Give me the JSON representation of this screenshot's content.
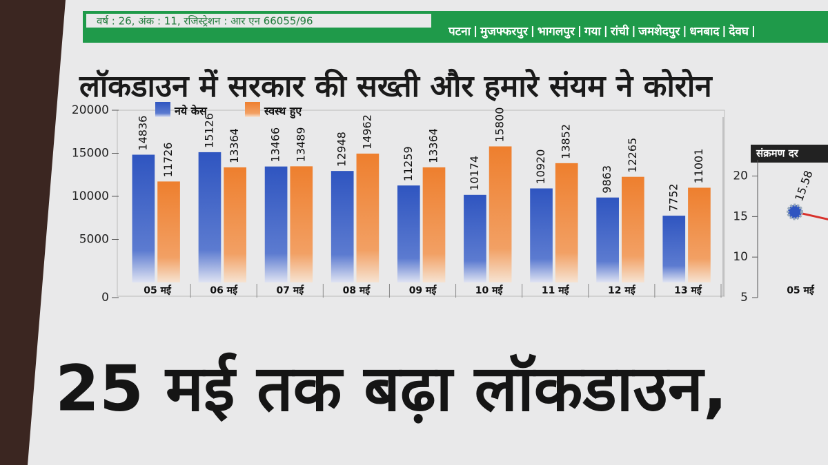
{
  "masthead": {
    "info": "वर्ष : 26, अंक : 11, रजिस्ट्रेशन : आर एन 66055/96",
    "cities": [
      "पटना",
      "मुजफ्फरपुर",
      "भागलपुर",
      "गया",
      "रांची",
      "जमशेदपुर",
      "धनबाद",
      "देवघ"
    ]
  },
  "headline": "लॉकडाउन में सरकार की सख्ती और हमारे संयम ने कोरोन",
  "headline2": "25 मई तक बढ़ा लॉकडाउन,",
  "chart_data": [
    {
      "type": "bar",
      "categories": [
        "05 मई",
        "06 मई",
        "07 मई",
        "08 मई",
        "09 मई",
        "10 मई",
        "11 मई",
        "12 मई",
        "13 मई"
      ],
      "series": [
        {
          "name": "नये केस",
          "color": "#3b5fc4",
          "values": [
            14836,
            15126,
            13466,
            12948,
            11259,
            10174,
            10920,
            9863,
            7752
          ]
        },
        {
          "name": "स्वस्थ हुए",
          "color": "#f0883a",
          "values": [
            11726,
            13364,
            13489,
            14962,
            13364,
            15800,
            13852,
            12265,
            11001
          ]
        }
      ],
      "ylim": [
        0,
        20000
      ],
      "yticks": [
        0,
        5000,
        10000,
        15000,
        20000
      ]
    },
    {
      "type": "line",
      "title": "संक्रमण दर",
      "categories": [
        "05 मई"
      ],
      "series": [
        {
          "color": "#d8302a",
          "values": [
            15.58
          ]
        }
      ],
      "ylim": [
        5,
        22
      ],
      "yticks": [
        5,
        10,
        15,
        20
      ]
    }
  ]
}
